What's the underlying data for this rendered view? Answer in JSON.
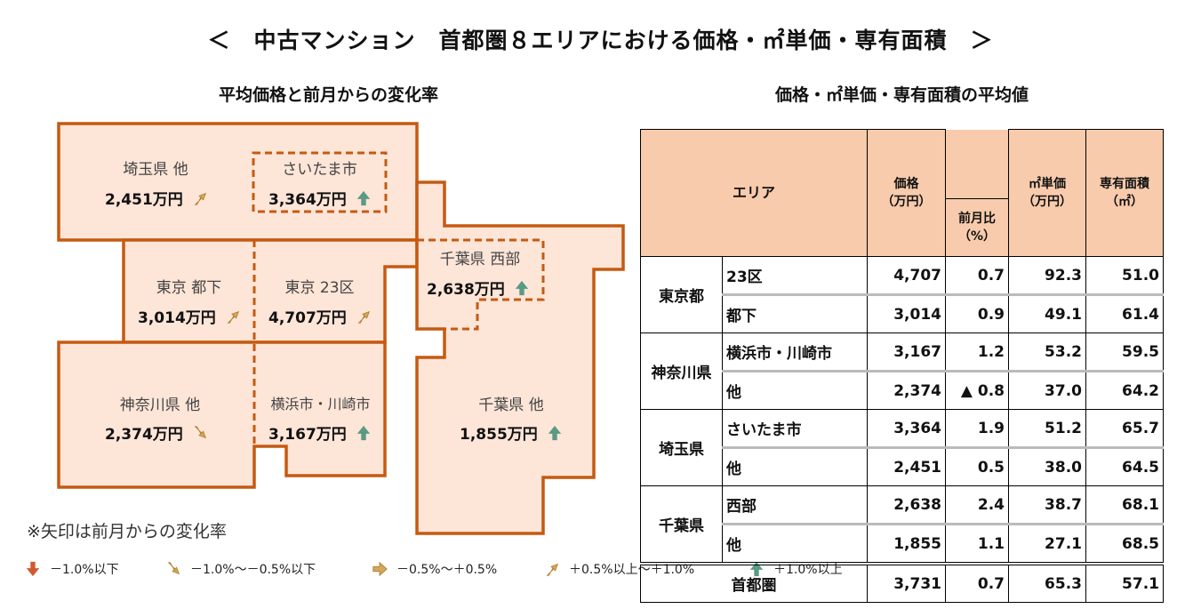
{
  "title": "＜　中古マンション　首都圏８エリアにおける価格・㎡単価・専有面積　＞",
  "map_title": "平均価格と前月からの変化率",
  "table_title": "価格・㎡単価・専有面積の平均値",
  "colors": {
    "up": "#5a9a85",
    "slight_up": "#d4a85a",
    "flat": "#d4a85a",
    "slight_down": "#d4a85a",
    "down": "#d05a30",
    "region_fill": "#fde5d8",
    "region_border": "#c55a11",
    "header_fill": "#f7cbac"
  },
  "map": {
    "saitama_other": {
      "name": "埼玉県 他",
      "price": "2,451万円",
      "arrow": "slight_up"
    },
    "saitama_city": {
      "name": "さいたま市",
      "price": "3,364万円",
      "arrow": "up"
    },
    "tokyo_other": {
      "name": "東京 都下",
      "price": "3,014万円",
      "arrow": "slight_up"
    },
    "tokyo_23": {
      "name": "東京 23区",
      "price": "4,707万円",
      "arrow": "slight_up"
    },
    "chiba_west": {
      "name": "千葉県 西部",
      "price": "2,638万円",
      "arrow": "up"
    },
    "kanagawa_other": {
      "name": "神奈川県 他",
      "price": "2,374万円",
      "arrow": "slight_down"
    },
    "yokohama": {
      "name": "横浜市・川崎市",
      "price": "3,167万円",
      "arrow": "up"
    },
    "chiba_other": {
      "name": "千葉県 他",
      "price": "1,855万円",
      "arrow": "up"
    }
  },
  "note": "※矢印は前月からの変化率",
  "legend": [
    {
      "arrow": "down",
      "label": "－1.0%以下"
    },
    {
      "arrow": "slight_down",
      "label": "－1.0%～－0.5%以下"
    },
    {
      "arrow": "flat",
      "label": "－0.5%～＋0.5%"
    },
    {
      "arrow": "slight_up",
      "label": "＋0.5%以上～＋1.0%"
    },
    {
      "arrow": "up",
      "label": "＋1.0%以上"
    }
  ],
  "table": {
    "headers": {
      "area": "エリア",
      "price": "価格",
      "price_unit": "（万円）",
      "mom": "前月比",
      "mom_unit": "（%）",
      "unit_price": "㎡単価",
      "unit_price_unit": "（万円）",
      "size": "専有面積",
      "size_unit": "（㎡）"
    },
    "groups": [
      {
        "pref": "東京都",
        "rows": [
          {
            "area": "23区",
            "price": "4,707",
            "mom": "0.7",
            "unit": "92.3",
            "size": "51.0"
          },
          {
            "area": "都下",
            "price": "3,014",
            "mom": "0.9",
            "unit": "49.1",
            "size": "61.4"
          }
        ]
      },
      {
        "pref": "神奈川県",
        "rows": [
          {
            "area": "横浜市・川崎市",
            "price": "3,167",
            "mom": "1.2",
            "unit": "53.2",
            "size": "59.5"
          },
          {
            "area": "他",
            "price": "2,374",
            "mom": "▲ 0.8",
            "unit": "37.0",
            "size": "64.2"
          }
        ]
      },
      {
        "pref": "埼玉県",
        "rows": [
          {
            "area": "さいたま市",
            "price": "3,364",
            "mom": "1.9",
            "unit": "51.2",
            "size": "65.7"
          },
          {
            "area": "他",
            "price": "2,451",
            "mom": "0.5",
            "unit": "38.0",
            "size": "64.5"
          }
        ]
      },
      {
        "pref": "千葉県",
        "rows": [
          {
            "area": "西部",
            "price": "2,638",
            "mom": "2.4",
            "unit": "38.7",
            "size": "68.1"
          },
          {
            "area": "他",
            "price": "1,855",
            "mom": "1.1",
            "unit": "27.1",
            "size": "68.5"
          }
        ]
      }
    ],
    "total": {
      "area": "首都圏",
      "price": "3,731",
      "mom": "0.7",
      "unit": "65.3",
      "size": "57.1"
    }
  }
}
